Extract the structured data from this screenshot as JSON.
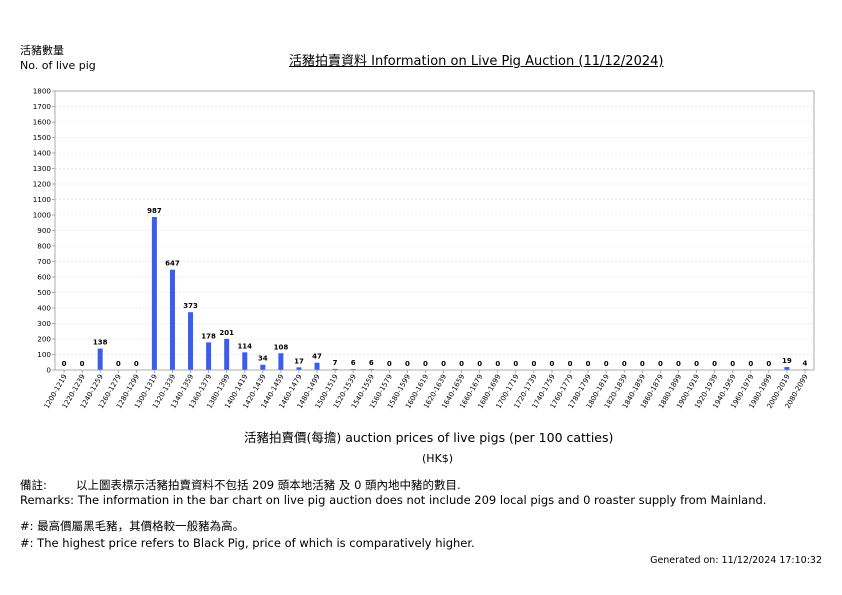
{
  "header": {
    "ylabel_cn": "活豬數量",
    "ylabel_en": "No. of live pig",
    "title": "活豬拍賣資料 Information on Live Pig Auction (11/12/2024)"
  },
  "axis": {
    "xlabel": "活豬拍賣價(每擔) auction prices of live pigs (per 100 catties)",
    "unit": "(HK$)"
  },
  "remarks": {
    "cn_label": "備註:",
    "cn": "以上圖表標示活豬拍賣資料不包括 209 頭本地活豬 及 0 頭內地中豬的數目.",
    "en": "Remarks: The information in the bar chart on live pig auction does not include 209 local pigs and 0 roaster supply from Mainland."
  },
  "notes": {
    "cn": "#: 最高價屬黑毛豬，其價格較一般豬為高。",
    "en": "#: The highest price refers to Black Pig, price of which is comparatively higher."
  },
  "footer": {
    "generated": "Generated on: 11/12/2024 17:10:32"
  },
  "colors": {
    "bar": "#3b5ee8",
    "grid": "#d9d9d9",
    "axis": "#999999"
  },
  "chart_data": {
    "type": "bar",
    "title": "活豬拍賣資料 Information on Live Pig Auction (11/12/2024)",
    "xlabel": "活豬拍賣價(每擔) auction prices of live pigs (per 100 catties)",
    "ylabel": "活豬數量 No. of live pig",
    "ylim": [
      0,
      1800
    ],
    "yticks": [
      0,
      100,
      200,
      300,
      400,
      500,
      600,
      700,
      800,
      900,
      1000,
      1100,
      1200,
      1300,
      1400,
      1500,
      1600,
      1700,
      1800
    ],
    "grid": true,
    "categories": [
      "1200-1219",
      "1220-1239",
      "1240-1259",
      "1260-1279",
      "1280-1299",
      "1300-1319",
      "1320-1339",
      "1340-1359",
      "1360-1379",
      "1380-1399",
      "1400-1419",
      "1420-1439",
      "1440-1459",
      "1460-1479",
      "1480-1499",
      "1500-1519",
      "1520-1539",
      "1540-1559",
      "1560-1579",
      "1580-1599",
      "1600-1619",
      "1620-1639",
      "1640-1659",
      "1660-1679",
      "1680-1699",
      "1700-1719",
      "1720-1739",
      "1740-1759",
      "1760-1779",
      "1780-1799",
      "1800-1819",
      "1820-1839",
      "1840-1859",
      "1860-1879",
      "1880-1899",
      "1900-1919",
      "1920-1939",
      "1940-1959",
      "1960-1979",
      "1980-1999",
      "2000-2019",
      "2080-2099"
    ],
    "values": [
      0,
      0,
      138,
      0,
      0,
      987,
      647,
      373,
      178,
      201,
      114,
      34,
      108,
      17,
      47,
      7,
      6,
      6,
      0,
      0,
      0,
      0,
      0,
      0,
      0,
      0,
      0,
      0,
      0,
      0,
      0,
      0,
      0,
      0,
      0,
      0,
      0,
      0,
      0,
      0,
      19,
      4
    ],
    "data_labels": [
      "0",
      "0",
      "138",
      "0",
      "0",
      "987",
      "647",
      "373",
      "178",
      "201",
      "114",
      "34",
      "108",
      "17",
      "47",
      "7",
      "6",
      "6",
      "0",
      "0",
      "0",
      "0",
      "0",
      "0",
      "0",
      "0",
      "0",
      "0",
      "0",
      "0",
      "0",
      "0",
      "0",
      "0",
      "0",
      "0",
      "0",
      "0",
      "0",
      "0",
      "19",
      "4"
    ]
  }
}
